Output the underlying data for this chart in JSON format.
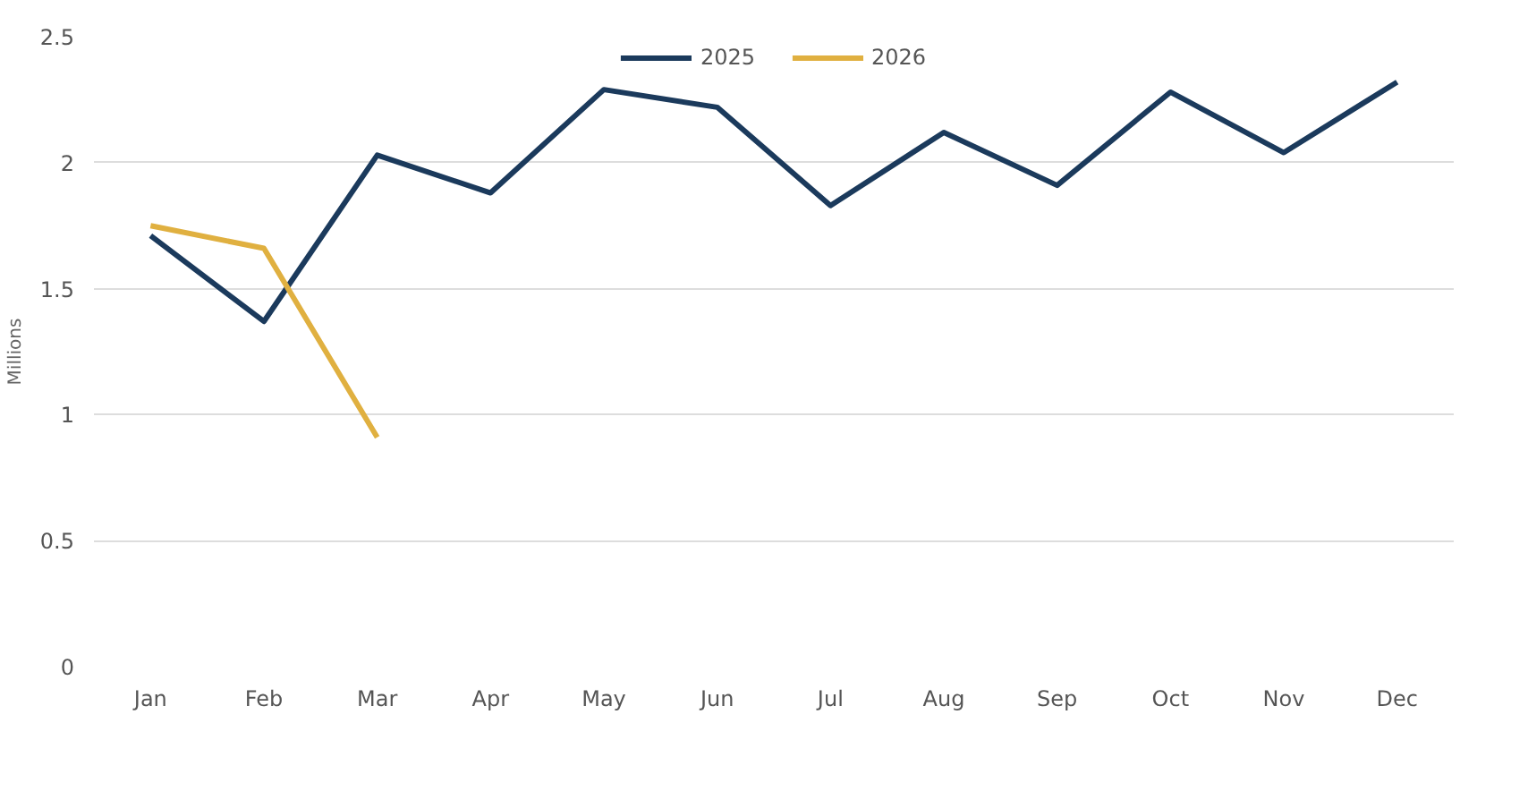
{
  "chart_data": {
    "type": "line",
    "ylabel": "Millions",
    "categories": [
      "Jan",
      "Feb",
      "Mar",
      "Apr",
      "May",
      "Jun",
      "Jul",
      "Aug",
      "Sep",
      "Oct",
      "Nov",
      "Dec"
    ],
    "series": [
      {
        "name": "2025",
        "color": "#1b3a5c",
        "values": [
          1.71,
          1.37,
          2.03,
          1.88,
          2.29,
          2.22,
          1.83,
          2.12,
          1.91,
          2.28,
          2.04,
          2.32
        ]
      },
      {
        "name": "2026",
        "color": "#e0b040",
        "values": [
          1.75,
          1.66,
          0.91,
          null,
          null,
          null,
          null,
          null,
          null,
          null,
          null,
          null
        ]
      }
    ],
    "ylim": [
      0,
      2.5
    ],
    "yticks": [
      0,
      0.5,
      1,
      1.5,
      2,
      2.5
    ],
    "grid": "y",
    "legend": "top",
    "marker": "none",
    "line_style": "solid"
  }
}
